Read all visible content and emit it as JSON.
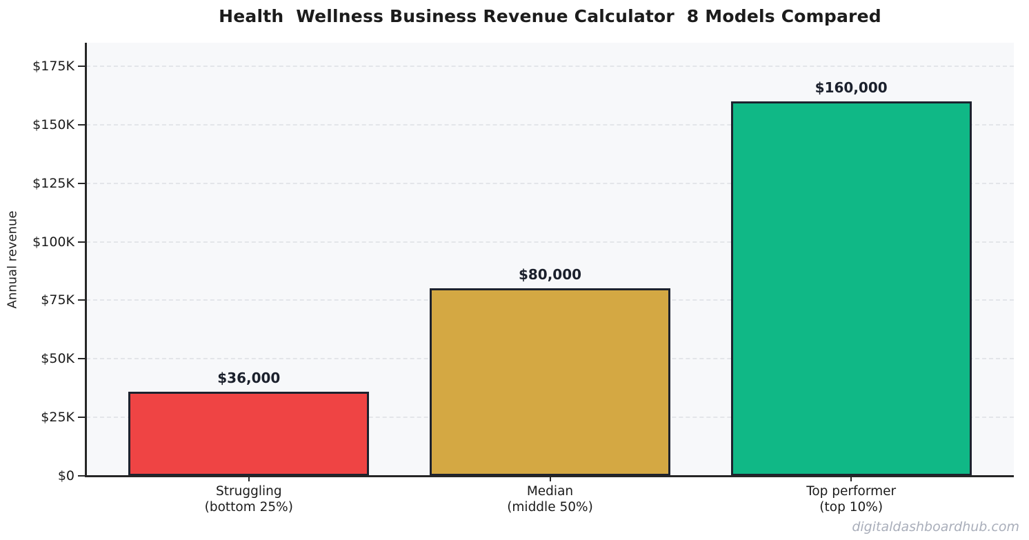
{
  "watermark": "digitaldashboardhub.com",
  "chart_data": {
    "type": "bar",
    "title": "Health  Wellness Business Revenue Calculator  8 Models Compared",
    "xlabel": "",
    "ylabel": "Annual revenue",
    "categories": [
      "Struggling\n(bottom 25%)",
      "Median\n(middle 50%)",
      "Top performer\n(top 10%)"
    ],
    "values": [
      36000,
      80000,
      160000
    ],
    "value_labels": [
      "$36,000",
      "$80,000",
      "$160,000"
    ],
    "bar_colors": [
      "#EF4444",
      "#D4A843",
      "#10B886"
    ],
    "bar_edge_color": "#1D222E",
    "ytick_values": [
      0,
      25000,
      50000,
      75000,
      100000,
      125000,
      150000,
      175000
    ],
    "ytick_labels": [
      "$0",
      "$25K",
      "$50K",
      "$75K",
      "$100K",
      "$125K",
      "$150K",
      "$175K"
    ],
    "ylim": [
      0,
      185000
    ],
    "grid": "horizontal-dashed",
    "legend": "none",
    "plot_background": "#F7F8FA"
  }
}
